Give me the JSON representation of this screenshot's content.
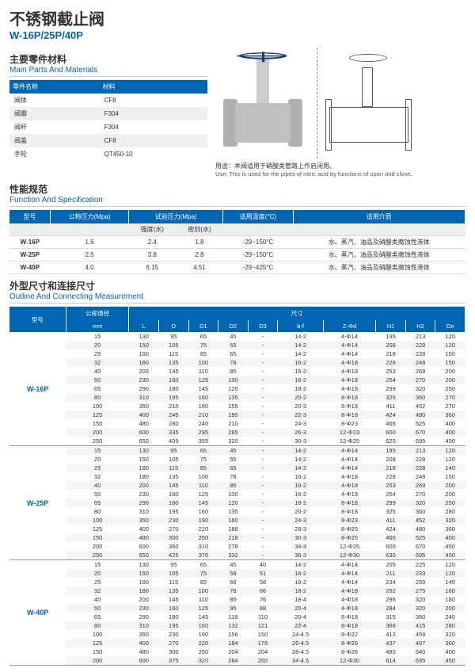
{
  "title": {
    "cn": "不锈钢截止阀",
    "en": "W-16P/25P/40P"
  },
  "sec1": {
    "cn": "主要零件材料",
    "en": "Main Parts And Materials",
    "h1": "零件名称",
    "h2": "材料",
    "rows": [
      [
        "阀体",
        "CF8"
      ],
      [
        "阀瓣",
        "F304"
      ],
      [
        "阀杆",
        "F304"
      ],
      [
        "阀盖",
        "CF8"
      ],
      [
        "手轮",
        "QT450-10"
      ]
    ]
  },
  "use": {
    "cn": "用途：本阀适用于硝酸类管路上作启闭用。",
    "en": "Use: This is used for the pipes of nitric acid by functions of open and close."
  },
  "sec2": {
    "cn": "性能规范",
    "en": "Function And Specification",
    "heads": [
      "型号",
      "公称压力(Mpa)",
      "试验压力(Mpa)",
      "适用温度(°C)",
      "适用介质"
    ],
    "sub": [
      "",
      "",
      "强度(水)",
      "密封(水)",
      "",
      ""
    ],
    "rows": [
      [
        "W-16P",
        "1.6",
        "2.4",
        "1.8",
        "-29~150°C",
        "水、蒸汽、油品及硝酸类腐蚀性液体"
      ],
      [
        "W-25P",
        "2.5",
        "3.8",
        "2.8",
        "-29~150°C",
        "水、蒸汽、油品及硝酸类腐蚀性液体"
      ],
      [
        "W-40P",
        "4.0",
        "6.15",
        "4.51",
        "-29~425°C",
        "水、蒸汽、油品及硝酸类腐蚀性液体"
      ]
    ]
  },
  "sec3": {
    "cn": "外型尺寸和连接尺寸",
    "en": "Outline And Connecting Measurement",
    "heads": [
      "型号",
      "公称通径",
      "尺寸"
    ],
    "cols": [
      "mm",
      "L",
      "D",
      "D1",
      "D2",
      "D3",
      "b-f",
      "Z-Φd",
      "H1",
      "H2",
      "Do"
    ],
    "groups": [
      {
        "model": "W-16P",
        "rows": [
          [
            "15",
            "130",
            "95",
            "65",
            "45",
            "-",
            "14-2",
            "4-Φ14",
            "195",
            "213",
            "120"
          ],
          [
            "20",
            "150",
            "105",
            "75",
            "55",
            "-",
            "14-2",
            "4-Φ14",
            "208",
            "228",
            "120"
          ],
          [
            "25",
            "160",
            "115",
            "85",
            "65",
            "-",
            "14-2",
            "4-Φ14",
            "218",
            "228",
            "150"
          ],
          [
            "32",
            "180",
            "135",
            "100",
            "78",
            "-",
            "16-2",
            "4-Φ18",
            "228",
            "248",
            "150"
          ],
          [
            "40",
            "200",
            "145",
            "110",
            "85",
            "-",
            "16-2",
            "4-Φ18",
            "253",
            "269",
            "200"
          ],
          [
            "50",
            "230",
            "160",
            "125",
            "100",
            "-",
            "16-2",
            "4-Φ18",
            "254",
            "270",
            "200"
          ],
          [
            "65",
            "290",
            "180",
            "145",
            "120",
            "-",
            "18-2",
            "4-Φ18",
            "299",
            "320",
            "250"
          ],
          [
            "80",
            "310",
            "195",
            "160",
            "135",
            "-",
            "20-2",
            "8-Φ18",
            "325",
            "360",
            "270"
          ],
          [
            "100",
            "350",
            "215",
            "180",
            "155",
            "-",
            "20-3",
            "8-Φ18",
            "411",
            "452",
            "270"
          ],
          [
            "125",
            "400",
            "245",
            "210",
            "185",
            "-",
            "22-3",
            "8-Φ18",
            "424",
            "480",
            "360"
          ],
          [
            "150",
            "480",
            "280",
            "240",
            "210",
            "-",
            "24-3",
            "8-Φ23",
            "466",
            "525",
            "400"
          ],
          [
            "200",
            "600",
            "335",
            "295",
            "265",
            "-",
            "26-3",
            "12-Φ23",
            "600",
            "670",
            "400"
          ],
          [
            "250",
            "650",
            "405",
            "355",
            "320",
            "-",
            "30-3",
            "12-Φ25",
            "620",
            "695",
            "450"
          ]
        ]
      },
      {
        "model": "W-25P",
        "rows": [
          [
            "15",
            "130",
            "95",
            "65",
            "45",
            "-",
            "14-2",
            "4-Φ14",
            "195",
            "213",
            "120"
          ],
          [
            "20",
            "150",
            "105",
            "75",
            "55",
            "-",
            "14-2",
            "4-Φ14",
            "208",
            "228",
            "120"
          ],
          [
            "25",
            "160",
            "115",
            "85",
            "65",
            "-",
            "14-2",
            "4-Φ14",
            "218",
            "228",
            "140"
          ],
          [
            "32",
            "180",
            "135",
            "100",
            "78",
            "-",
            "16-2",
            "4-Φ18",
            "228",
            "248",
            "150"
          ],
          [
            "40",
            "200",
            "145",
            "110",
            "85",
            "-",
            "16-2",
            "4-Φ18",
            "253",
            "269",
            "200"
          ],
          [
            "50",
            "230",
            "160",
            "125",
            "100",
            "-",
            "16-2",
            "4-Φ18",
            "254",
            "270",
            "200"
          ],
          [
            "65",
            "290",
            "180",
            "145",
            "120",
            "-",
            "18-2",
            "8-Φ18",
            "299",
            "320",
            "250"
          ],
          [
            "80",
            "310",
            "195",
            "160",
            "135",
            "-",
            "20-2",
            "8-Φ18",
            "325",
            "360",
            "280"
          ],
          [
            "100",
            "350",
            "230",
            "190",
            "160",
            "-",
            "24-3",
            "8-Φ23",
            "411",
            "452",
            "320"
          ],
          [
            "125",
            "400",
            "270",
            "220",
            "188",
            "-",
            "28-3",
            "8-Φ25",
            "424",
            "480",
            "360"
          ],
          [
            "150",
            "480",
            "300",
            "250",
            "218",
            "-",
            "30-3",
            "8-Φ25",
            "466",
            "525",
            "400"
          ],
          [
            "200",
            "600",
            "360",
            "310",
            "278",
            "-",
            "34-3",
            "12-Φ25",
            "600",
            "670",
            "450"
          ],
          [
            "250",
            "650",
            "425",
            "370",
            "332",
            "-",
            "36-3",
            "12-Φ30",
            "630",
            "695",
            "450"
          ]
        ]
      },
      {
        "model": "W-40P",
        "rows": [
          [
            "15",
            "130",
            "95",
            "65",
            "45",
            "40",
            "14-2",
            "4-Φ14",
            "205",
            "225",
            "120"
          ],
          [
            "20",
            "150",
            "105",
            "75",
            "58",
            "51",
            "16-2",
            "4-Φ14",
            "211",
            "233",
            "120"
          ],
          [
            "25",
            "160",
            "115",
            "85",
            "68",
            "58",
            "16-2",
            "4-Φ14",
            "234",
            "259",
            "140"
          ],
          [
            "32",
            "180",
            "135",
            "100",
            "78",
            "66",
            "18-2",
            "4-Φ18",
            "252",
            "275",
            "160"
          ],
          [
            "40",
            "200",
            "145",
            "110",
            "85",
            "76",
            "18-4",
            "4-Φ18",
            "296",
            "320",
            "180"
          ],
          [
            "50",
            "230",
            "160",
            "125",
            "95",
            "88",
            "20-4",
            "4-Φ18",
            "284",
            "320",
            "200"
          ],
          [
            "65",
            "290",
            "180",
            "145",
            "118",
            "110",
            "20-4",
            "8-Φ18",
            "315",
            "360",
            "240"
          ],
          [
            "80",
            "310",
            "195",
            "160",
            "132",
            "121",
            "22-4",
            "8-Φ18",
            "368",
            "415",
            "280"
          ],
          [
            "100",
            "350",
            "230",
            "190",
            "156",
            "150",
            "24-4.5",
            "8-Φ22",
            "413",
            "459",
            "320"
          ],
          [
            "125",
            "400",
            "270",
            "220",
            "184",
            "176",
            "26-4.5",
            "8-Φ26",
            "437",
            "497",
            "360"
          ],
          [
            "150",
            "480",
            "300",
            "250",
            "204",
            "204",
            "28-4.5",
            "8-Φ26",
            "480",
            "540",
            "400"
          ],
          [
            "200",
            "600",
            "375",
            "320",
            "284",
            "260",
            "34-4.5",
            "12-Φ30",
            "614",
            "695",
            "450"
          ]
        ]
      }
    ]
  }
}
